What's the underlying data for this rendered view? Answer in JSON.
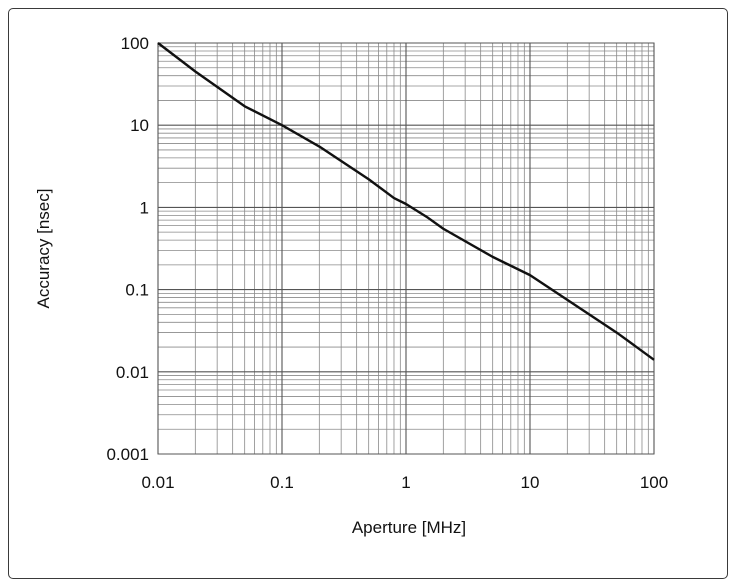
{
  "chart_data": {
    "type": "line",
    "title": "",
    "xlabel": "Aperture [MHz]",
    "ylabel": "Accuracy [nsec]",
    "x_scale": "log",
    "y_scale": "log",
    "xlim": [
      0.01,
      100
    ],
    "ylim": [
      0.001,
      100
    ],
    "x_tick_labels": [
      "0.01",
      "0.1",
      "1",
      "10",
      "100"
    ],
    "y_tick_labels": [
      "100",
      "10",
      "1",
      "0.1",
      "0.01",
      "0.001"
    ],
    "x_ticks": [
      0.01,
      0.1,
      1,
      10,
      100
    ],
    "y_ticks": [
      100,
      10,
      1,
      0.1,
      0.01,
      0.001
    ],
    "grid": true,
    "legend": "none",
    "series": [
      {
        "x": [
          0.01,
          0.02,
          0.05,
          0.1,
          0.2,
          0.5,
          0.8,
          1,
          1.5,
          2,
          5,
          10,
          20,
          50,
          100
        ],
        "y": [
          100,
          45,
          17,
          10,
          5.5,
          2.2,
          1.3,
          1.1,
          0.75,
          0.55,
          0.25,
          0.15,
          0.075,
          0.03,
          0.014
        ],
        "color": "#111111"
      }
    ]
  }
}
